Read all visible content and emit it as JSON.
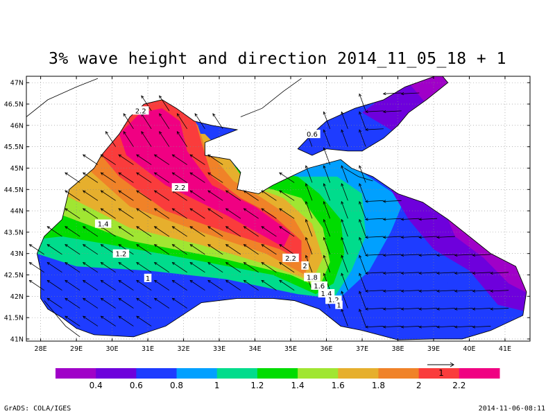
{
  "title": "3% wave height and direction 2014_11_05_18 + 1",
  "map": {
    "lat_ticks": [
      "47N",
      "46.5N",
      "46N",
      "45.5N",
      "45N",
      "44.5N",
      "44N",
      "43.5N",
      "43N",
      "42.5N",
      "42N",
      "41.5N",
      "41N"
    ],
    "lon_ticks": [
      "28E",
      "29E",
      "30E",
      "31E",
      "32E",
      "33E",
      "34E",
      "35E",
      "36E",
      "37E",
      "38E",
      "39E",
      "40E",
      "41E"
    ],
    "lon_range": [
      27.6,
      41.7
    ],
    "lat_range": [
      40.95,
      47.15
    ],
    "grid": true,
    "contour_labels": [
      {
        "text": "2.2",
        "lon": 30.8,
        "lat": 46.35
      },
      {
        "text": "0.6",
        "lon": 35.6,
        "lat": 45.8
      },
      {
        "text": "2.2",
        "lon": 31.9,
        "lat": 44.55
      },
      {
        "text": "1.4",
        "lon": 29.75,
        "lat": 43.7
      },
      {
        "text": "1.2",
        "lon": 30.25,
        "lat": 43.0
      },
      {
        "text": "1",
        "lon": 31.0,
        "lat": 42.43
      },
      {
        "text": "2.2",
        "lon": 35.0,
        "lat": 42.9
      },
      {
        "text": "2",
        "lon": 35.4,
        "lat": 42.72
      },
      {
        "text": "1.8",
        "lon": 35.6,
        "lat": 42.45
      },
      {
        "text": "1.6",
        "lon": 35.8,
        "lat": 42.25
      },
      {
        "text": "1.4",
        "lon": 36.0,
        "lat": 42.07
      },
      {
        "text": "1.2",
        "lon": 36.2,
        "lat": 41.92
      },
      {
        "text": "1",
        "lon": 36.35,
        "lat": 41.8
      }
    ]
  },
  "legend": {
    "labels": [
      "0.4",
      "0.6",
      "0.8",
      "1",
      "1.2",
      "1.4",
      "1.6",
      "1.8",
      "2",
      "2.2"
    ],
    "colors": [
      "#a000c8",
      "#6e00dc",
      "#1e3cff",
      "#00a0ff",
      "#00dc8c",
      "#00dc00",
      "#a0e632",
      "#e6af2d",
      "#f08228",
      "#fa3c3c",
      "#f00082"
    ],
    "vector_ref_label": "1"
  },
  "footer": {
    "left": "GrADS: COLA/IGES",
    "right": "2014-11-06-08:11"
  }
}
